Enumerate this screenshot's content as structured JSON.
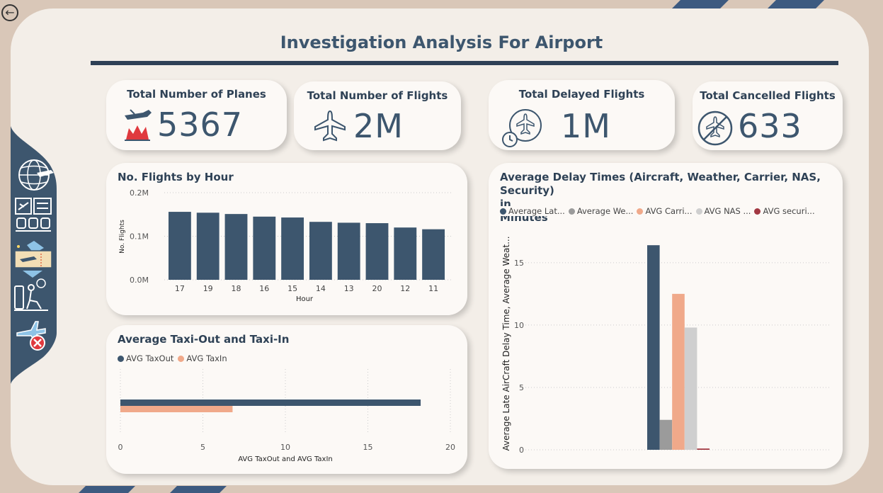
{
  "title": "Investigation Analysis For Airport",
  "colors": {
    "primary": "#3d566e",
    "salmon": "#f0a98a",
    "gray": "#9b9b9b",
    "light_gray": "#cfcfcf",
    "red": "#a23842",
    "accent_stripe": "#3d5a80"
  },
  "nav": {
    "back_icon": "arrow-left-circle-icon",
    "items": [
      {
        "icon": "globe-plane-icon"
      },
      {
        "icon": "departure-board-icon"
      },
      {
        "icon": "boarding-pass-icon"
      },
      {
        "icon": "passenger-waiting-icon"
      },
      {
        "icon": "cancelled-flight-icon"
      }
    ]
  },
  "kpis": [
    {
      "label": "Total Number of Planes",
      "value": "5367",
      "icon": "plane-fire-icon"
    },
    {
      "label": "Total Number of Flights",
      "value": "2M",
      "icon": "plane-icon"
    },
    {
      "label": "Total Delayed Flights",
      "value": "1M",
      "icon": "plane-clock-icon"
    },
    {
      "label": "Total Cancelled Flights",
      "value": "633",
      "icon": "no-plane-icon"
    }
  ],
  "chart_data": [
    {
      "type": "bar",
      "title": "No. Flights by Hour",
      "xlabel": "Hour",
      "ylabel": "No. Flights",
      "categories": [
        "17",
        "19",
        "18",
        "16",
        "15",
        "14",
        "13",
        "20",
        "12",
        "11"
      ],
      "values": [
        156000,
        154000,
        151000,
        145000,
        143000,
        133000,
        131000,
        130000,
        120000,
        116000
      ],
      "ylim": [
        0,
        200000
      ],
      "yticks": [
        "0.0M",
        "0.1M",
        "0.2M"
      ]
    },
    {
      "type": "bar",
      "title": "Average Taxi-Out and Taxi-In",
      "xlabel": "AVG TaxOut and AVG TaxIn",
      "orientation": "horizontal",
      "series": [
        {
          "name": "AVG TaxOut",
          "values": [
            18.2
          ]
        },
        {
          "name": "AVG TaxIn",
          "values": [
            6.8
          ]
        }
      ],
      "xlim": [
        0,
        20
      ],
      "xticks": [
        "0",
        "5",
        "10",
        "15",
        "20"
      ],
      "legend": "top-left"
    },
    {
      "type": "bar",
      "title": "Average Delay Times (Aircraft, Weather, Carrier, NAS, Security) in Minutes",
      "title_lines": [
        "Average Delay Times (Aircraft, Weather, Carrier, NAS, Security)",
        "in",
        "Minutes"
      ],
      "ylabel": "Average Late AirCraft Delay Time, Average Weat...",
      "series": [
        {
          "name": "Average Lat...",
          "values": [
            16.4
          ]
        },
        {
          "name": "Average We...",
          "values": [
            2.4
          ]
        },
        {
          "name": "AVG Carri...",
          "values": [
            12.5
          ]
        },
        {
          "name": "AVG NAS ...",
          "values": [
            9.8
          ]
        },
        {
          "name": "AVG securi...",
          "values": [
            0.1
          ]
        }
      ],
      "ylim": [
        0,
        18
      ],
      "yticks": [
        "0",
        "5",
        "10",
        "15"
      ],
      "legend": "top-left"
    }
  ]
}
